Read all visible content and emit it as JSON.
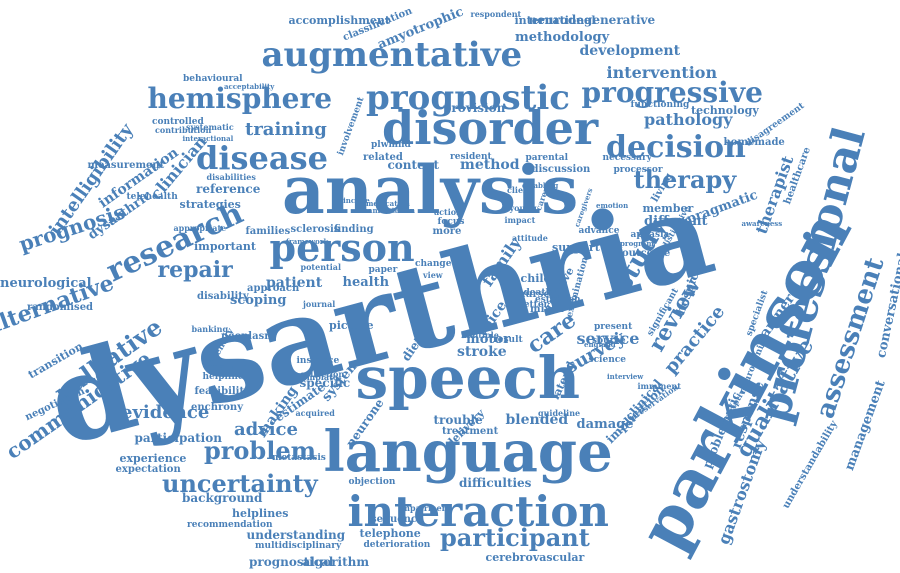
{
  "cloud": {
    "color": "#4a80b8",
    "words": [
      "dysarthria",
      "analysis",
      "speech",
      "language",
      "interaction",
      "parkinson",
      "professional",
      "disorder",
      "person",
      "augmentative",
      "prognostic",
      "progressive",
      "hemisphere",
      "disease",
      "decision",
      "research",
      "assessment",
      "therapy",
      "study",
      "participant",
      "uncertainty",
      "problem",
      "evidence",
      "palliative",
      "alternative",
      "communicative",
      "prognosis",
      "intelligibility",
      "repair",
      "training",
      "pathology",
      "intervention",
      "development",
      "methodology",
      "international",
      "neurodegenerative",
      "amyotrophic",
      "accomplishment",
      "classification",
      "respondent",
      "behavioural",
      "acceptability",
      "controlled",
      "information",
      "clinician",
      "dysarthric",
      "neurological",
      "randomised",
      "transition",
      "negotiation",
      "reference",
      "strategies",
      "disabilities",
      "families",
      "sclerosis",
      "finding",
      "more",
      "patient",
      "health",
      "scoping",
      "approach",
      "disability",
      "important",
      "feasibility",
      "helpline",
      "analytic",
      "enchrony",
      "banking",
      "participation",
      "experience",
      "expectation",
      "background",
      "helplines",
      "recommendation",
      "understanding",
      "multidisciplinary",
      "prognostical",
      "algorithm",
      "cerebrovascular",
      "deterioration",
      "telephone",
      "sequence",
      "impairment",
      "objection",
      "difficulties",
      "trouble",
      "blended",
      "damage",
      "treatment",
      "stroke",
      "motor",
      "diet",
      "voice",
      "care",
      "survey",
      "service",
      "family",
      "method",
      "content",
      "review",
      "practice",
      "implication",
      "clinical",
      "qualitative",
      "gastrostomy",
      "problematic",
      "response",
      "partner",
      "therapist",
      "management",
      "conversational",
      "understandability",
      "healthcare",
      "specialist",
      "technology",
      "functioning",
      "different",
      "member",
      "living",
      "pragmatic",
      "aphasia",
      "awareness",
      "hospice",
      "significant",
      "examination",
      "source",
      "present",
      "support",
      "child",
      "nurse",
      "better",
      "mixed",
      "death",
      "result",
      "relative",
      "making",
      "advice",
      "specific",
      "system",
      "estimate",
      "neurone",
      "delivery",
      "lateral",
      "picture",
      "journal",
      "view",
      "paper",
      "related",
      "resident",
      "parental",
      "provision",
      "processor",
      "necessary",
      "discussion",
      "involvement",
      "contribution",
      "measurement",
      "systematic",
      "interactional",
      "telehealth",
      "framework",
      "neoplasm",
      "metastasis",
      "instance",
      "collection",
      "acquired",
      "template",
      "guideline",
      "england",
      "science",
      "advance",
      "outcome",
      "emotion",
      "carer",
      "client",
      "young",
      "impact",
      "action",
      "focus",
      "attitude",
      "establish",
      "interview",
      "imminent",
      "caregivers",
      "homemade",
      "disagreement",
      "distinctive",
      "disabling",
      "multiple",
      "descriptive",
      "neurogenic",
      "preservation",
      "medication",
      "manifestation",
      "principle",
      "plwmnd",
      "program",
      "change",
      "potential",
      "appropriate",
      "identity"
    ]
  }
}
